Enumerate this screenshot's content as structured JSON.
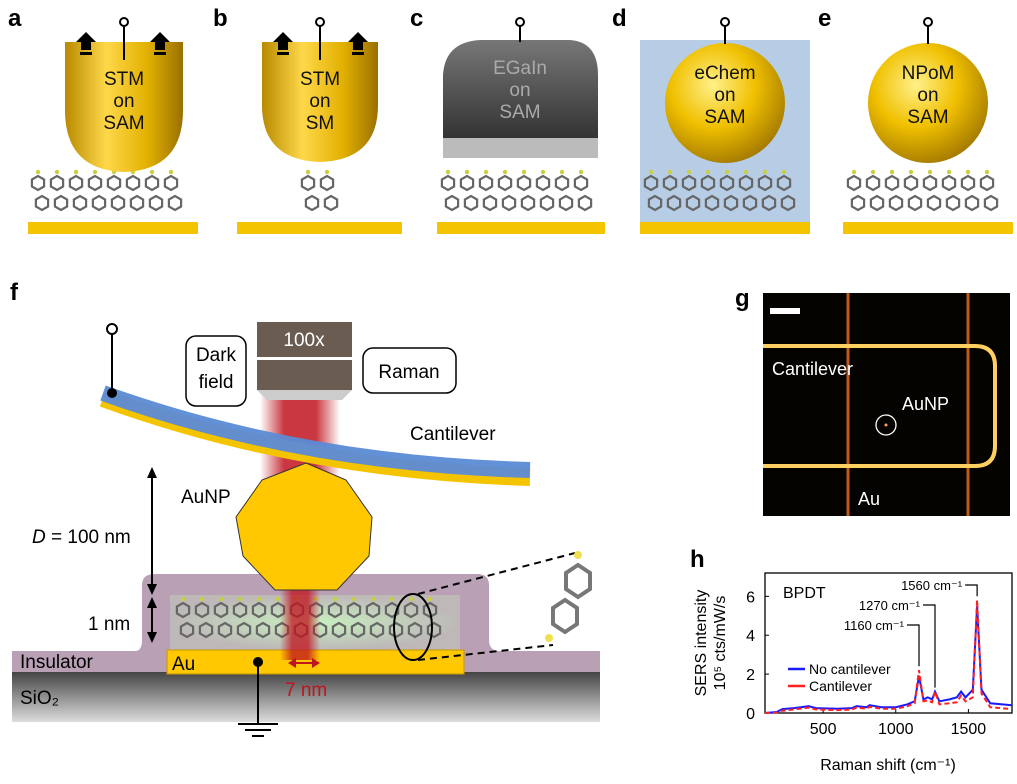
{
  "panels": {
    "a": {
      "letter": "a",
      "lines": [
        "STM",
        "on",
        "SAM"
      ]
    },
    "b": {
      "letter": "b",
      "lines": [
        "STM",
        "on",
        "SM"
      ]
    },
    "c": {
      "letter": "c",
      "lines": [
        "EGaIn",
        "on",
        "SAM"
      ]
    },
    "d": {
      "letter": "d",
      "lines": [
        "eChem",
        "on",
        "SAM"
      ]
    },
    "e": {
      "letter": "e",
      "lines": [
        "NPoM",
        "on",
        "SAM"
      ]
    },
    "f": {
      "letter": "f",
      "objective": "100x",
      "dark_field": [
        "Dark",
        "field"
      ],
      "raman": "Raman",
      "cantilever": "Cantilever",
      "aunp": "AuNP",
      "distance_symbol": "D",
      "distance_value": " = 100 nm",
      "gap": "1 nm",
      "insulator": "Insulator",
      "au": "Au",
      "sio2": "SiO₂",
      "hotspot": "7 nm"
    },
    "g": {
      "letter": "g",
      "cantilever": "Cantilever",
      "aunp": "AuNP",
      "au": "Au"
    },
    "h": {
      "letter": "h"
    }
  },
  "colors": {
    "gold": "#f5c400",
    "cantilever_blue": "#5b8bd6",
    "insulator": "#b9a0b5",
    "laser": "#c0141e",
    "no_cantilever": "#1a1aff",
    "cantilever_series": "#ff2020"
  },
  "chart_data": {
    "type": "line",
    "title": "",
    "annotation_label": "BPDT",
    "xlabel": "Raman shift (cm⁻¹)",
    "ylabel_line1": "SERS intensity",
    "ylabel_line2": "10⁵ cts/mW/s",
    "xlim": [
      100,
      1800
    ],
    "ylim": [
      0,
      7.2
    ],
    "xticks": [
      500,
      1000,
      1500
    ],
    "yticks": [
      0,
      2,
      4,
      6
    ],
    "grid": false,
    "legend_position": "center-left",
    "peak_annotations": [
      {
        "x": 1160,
        "label": "1160 cm⁻¹"
      },
      {
        "x": 1270,
        "label": "1270 cm⁻¹"
      },
      {
        "x": 1560,
        "label": "1560 cm⁻¹"
      }
    ],
    "series": [
      {
        "name": "No cantilever",
        "color": "#1a1aff",
        "dashed": false,
        "x": [
          100,
          180,
          220,
          300,
          400,
          450,
          600,
          700,
          730,
          800,
          820,
          900,
          1000,
          1080,
          1130,
          1160,
          1190,
          1220,
          1250,
          1270,
          1300,
          1370,
          1420,
          1450,
          1480,
          1530,
          1560,
          1590,
          1650,
          1800
        ],
        "y": [
          0,
          0.05,
          0.2,
          0.25,
          0.35,
          0.25,
          0.22,
          0.25,
          0.35,
          0.3,
          0.4,
          0.3,
          0.3,
          0.45,
          0.6,
          1.9,
          0.7,
          0.8,
          0.7,
          1.1,
          0.6,
          0.7,
          0.8,
          1.1,
          0.8,
          1.2,
          5.5,
          1.2,
          0.5,
          0.4
        ]
      },
      {
        "name": "Cantilever",
        "color": "#ff2020",
        "dashed": true,
        "x": [
          100,
          180,
          220,
          300,
          400,
          450,
          600,
          700,
          730,
          800,
          820,
          900,
          1000,
          1080,
          1130,
          1160,
          1190,
          1220,
          1250,
          1270,
          1300,
          1370,
          1420,
          1450,
          1480,
          1530,
          1560,
          1590,
          1650,
          1800
        ],
        "y": [
          0,
          0.02,
          0.12,
          0.18,
          0.28,
          0.18,
          0.15,
          0.18,
          0.28,
          0.22,
          0.32,
          0.22,
          0.22,
          0.35,
          0.5,
          2.2,
          0.6,
          0.65,
          0.55,
          1.1,
          0.45,
          0.5,
          0.55,
          0.9,
          0.6,
          0.8,
          5.8,
          1.0,
          0.3,
          0.2
        ]
      }
    ]
  }
}
